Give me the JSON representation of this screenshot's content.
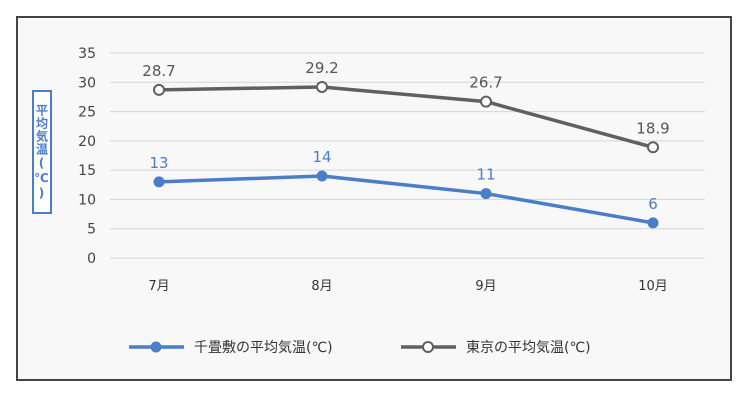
{
  "chart_data": {
    "type": "line",
    "categories": [
      "7月",
      "8月",
      "9月",
      "10月"
    ],
    "series": [
      {
        "name": "千畳敷の平均気温(℃)",
        "values": [
          13,
          14,
          11,
          6
        ],
        "color": "#4a7ec9",
        "marker": "filled-circle"
      },
      {
        "name": "東京の平均気温(℃)",
        "values": [
          28.7,
          29.2,
          26.7,
          18.9
        ],
        "color": "#606060",
        "marker": "hollow-circle"
      }
    ],
    "ylabel": "平均気温(℃)",
    "ylim": [
      0,
      35
    ],
    "yticks": [
      0,
      5,
      10,
      15,
      20,
      25,
      30,
      35
    ],
    "grid": true,
    "legend": "bottom",
    "data_labels": true
  }
}
